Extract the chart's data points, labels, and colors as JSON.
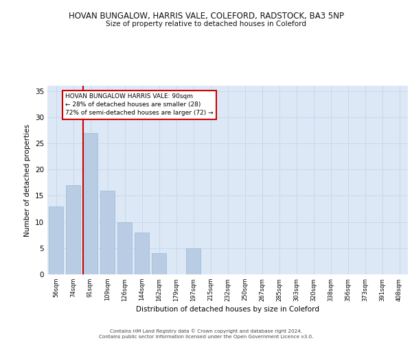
{
  "title": "HOVAN BUNGALOW, HARRIS VALE, COLEFORD, RADSTOCK, BA3 5NP",
  "subtitle": "Size of property relative to detached houses in Coleford",
  "xlabel": "Distribution of detached houses by size in Coleford",
  "ylabel": "Number of detached properties",
  "categories": [
    "56sqm",
    "74sqm",
    "91sqm",
    "109sqm",
    "126sqm",
    "144sqm",
    "162sqm",
    "179sqm",
    "197sqm",
    "215sqm",
    "232sqm",
    "250sqm",
    "267sqm",
    "285sqm",
    "303sqm",
    "320sqm",
    "338sqm",
    "356sqm",
    "373sqm",
    "391sqm",
    "408sqm"
  ],
  "values": [
    13,
    17,
    27,
    16,
    10,
    8,
    4,
    0,
    5,
    0,
    0,
    0,
    0,
    0,
    0,
    0,
    0,
    0,
    0,
    0,
    0
  ],
  "bar_color": "#b8cce4",
  "bar_edgecolor": "#9ab8d8",
  "grid_color": "#c8d8e8",
  "bg_color": "#dce8f5",
  "vline_color": "#cc0000",
  "vline_x_index": 2,
  "annotation_text": "HOVAN BUNGALOW HARRIS VALE: 90sqm\n← 28% of detached houses are smaller (28)\n72% of semi-detached houses are larger (72) →",
  "annotation_box_facecolor": "#ffffff",
  "annotation_box_edgecolor": "#cc0000",
  "ylim": [
    0,
    36
  ],
  "yticks": [
    0,
    5,
    10,
    15,
    20,
    25,
    30,
    35
  ],
  "footer1": "Contains HM Land Registry data © Crown copyright and database right 2024.",
  "footer2": "Contains public sector information licensed under the Open Government Licence v3.0."
}
